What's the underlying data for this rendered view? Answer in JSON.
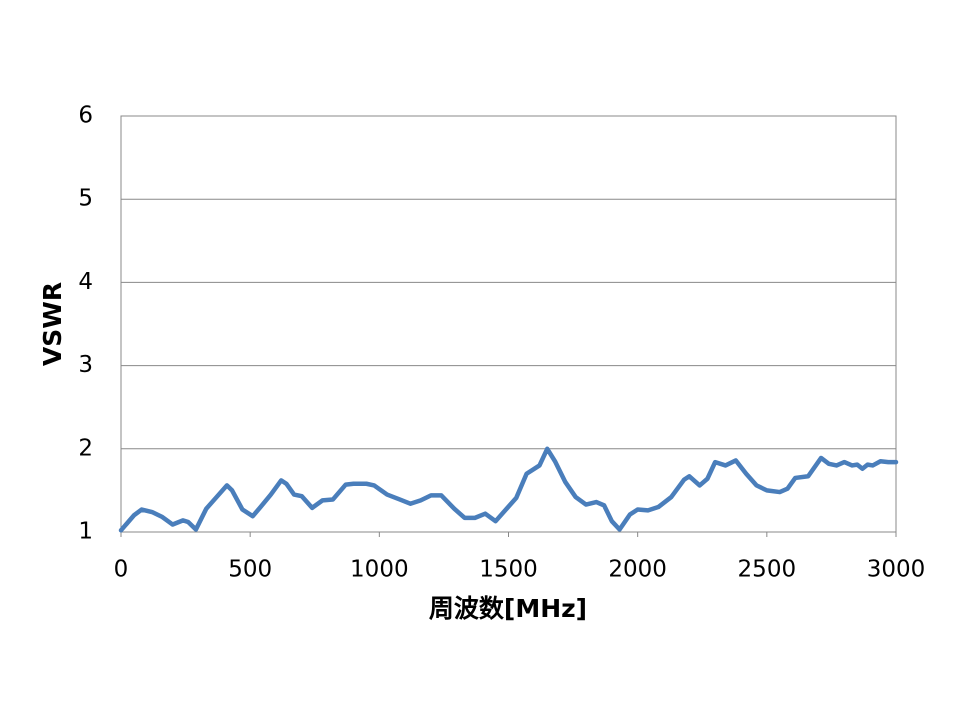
{
  "chart_data": {
    "type": "line",
    "xlabel": "周波数[MHz]",
    "ylabel": "VSWR",
    "x": [
      0,
      50,
      80,
      120,
      160,
      200,
      240,
      260,
      290,
      330,
      370,
      410,
      430,
      470,
      510,
      540,
      580,
      620,
      640,
      670,
      700,
      740,
      780,
      820,
      870,
      900,
      950,
      980,
      1030,
      1080,
      1120,
      1160,
      1200,
      1240,
      1290,
      1330,
      1370,
      1410,
      1450,
      1490,
      1530,
      1570,
      1620,
      1650,
      1680,
      1720,
      1760,
      1800,
      1840,
      1870,
      1900,
      1930,
      1970,
      2000,
      2040,
      2080,
      2130,
      2180,
      2200,
      2240,
      2270,
      2300,
      2340,
      2380,
      2420,
      2460,
      2500,
      2550,
      2580,
      2610,
      2660,
      2710,
      2740,
      2770,
      2800,
      2830,
      2850,
      2870,
      2890,
      2910,
      2940,
      2970,
      3000
    ],
    "series": [
      {
        "name": "VSWR",
        "color": "#4a7ebb",
        "values": [
          1.02,
          1.2,
          1.27,
          1.24,
          1.18,
          1.09,
          1.14,
          1.12,
          1.03,
          1.28,
          1.42,
          1.56,
          1.5,
          1.27,
          1.19,
          1.3,
          1.45,
          1.62,
          1.58,
          1.45,
          1.43,
          1.29,
          1.38,
          1.39,
          1.57,
          1.58,
          1.58,
          1.56,
          1.45,
          1.39,
          1.34,
          1.38,
          1.44,
          1.44,
          1.28,
          1.17,
          1.17,
          1.22,
          1.13,
          1.27,
          1.41,
          1.7,
          1.8,
          2.0,
          1.85,
          1.6,
          1.42,
          1.33,
          1.36,
          1.32,
          1.13,
          1.03,
          1.21,
          1.27,
          1.26,
          1.3,
          1.42,
          1.63,
          1.67,
          1.56,
          1.64,
          1.84,
          1.8,
          1.86,
          1.7,
          1.56,
          1.5,
          1.48,
          1.52,
          1.65,
          1.67,
          1.89,
          1.82,
          1.8,
          1.84,
          1.8,
          1.81,
          1.76,
          1.81,
          1.8,
          1.85,
          1.84,
          1.84
        ]
      }
    ],
    "xlim": [
      0,
      3000
    ],
    "xticks": [
      0,
      500,
      1000,
      1500,
      2000,
      2500,
      3000
    ],
    "ylim": [
      1,
      6
    ],
    "yticks": [
      1,
      2,
      3,
      4,
      5,
      6
    ],
    "grid": true
  }
}
